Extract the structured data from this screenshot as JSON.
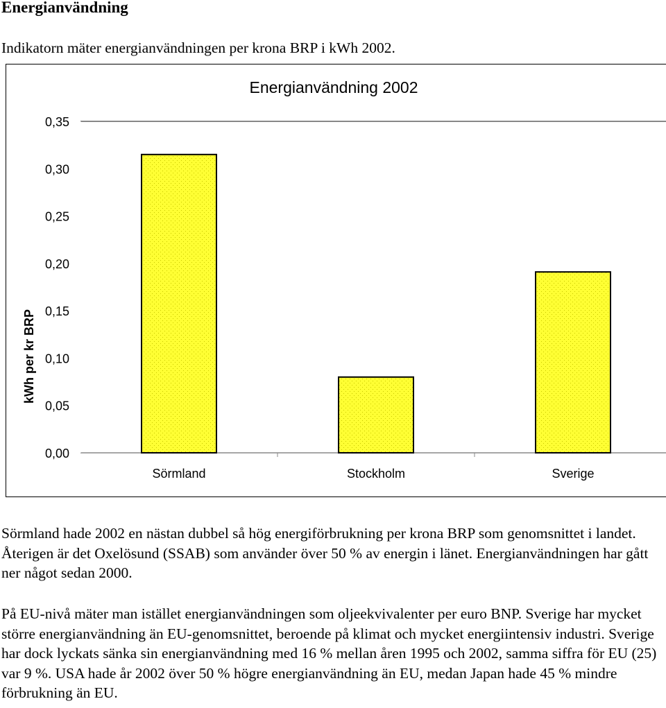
{
  "heading": "Energianvändning",
  "intro": "Indikatorn mäter energianvändningen per krona BRP i kWh 2002.",
  "chart_data": {
    "type": "bar",
    "title": "Energianvändning 2002",
    "xlabel": "",
    "ylabel": "kWh per kr BRP",
    "categories": [
      "Sörmland",
      "Stockholm",
      "Sverige"
    ],
    "values": [
      0.315,
      0.08,
      0.191
    ],
    "ylim": [
      0,
      0.35
    ],
    "yticks": [
      "0,00",
      "0,05",
      "0,10",
      "0,15",
      "0,20",
      "0,25",
      "0,30",
      "0,35"
    ],
    "grid": false,
    "legend": "none",
    "bar_color": "#ffff33",
    "bar_pattern_color": "#c8c800"
  },
  "paragraphs": [
    "Sörmland hade 2002 en nästan dubbel så hög energiförbrukning per krona BRP som genomsnittet i landet. Återigen är det Oxelösund (SSAB) som använder över 50 % av energin i länet. Energianvändningen har gått ner något sedan 2000.",
    "På EU-nivå mäter man istället energianvändningen som oljeekvivalenter per euro BNP. Sverige har mycket större energianvändning än EU-genomsnittet, beroende på klimat och mycket energiintensiv industri. Sverige har dock lyckats sänka sin energianvändning med 16 % mellan åren 1995 och 2002, samma siffra för EU (25) var 9 %. USA hade år 2002 över 50 % högre energianvändning än EU, medan Japan hade 45 % mindre förbrukning än EU."
  ]
}
